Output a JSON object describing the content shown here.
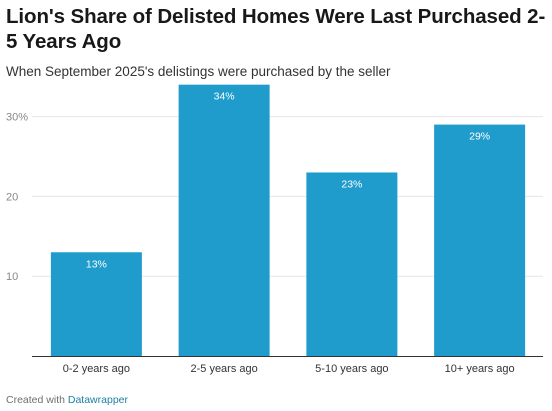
{
  "chart_data": {
    "type": "bar",
    "title": "Lion's Share of Delisted Homes Were Last Purchased 2-5 Years Ago",
    "subtitle": "When September 2025's delistings were purchased by the seller",
    "categories": [
      "0-2 years ago",
      "2-5 years ago",
      "5-10 years ago",
      "10+ years ago"
    ],
    "values": [
      13,
      34,
      23,
      29
    ],
    "value_labels": [
      "13%",
      "34%",
      "23%",
      "29%"
    ],
    "ylim": [
      0,
      30
    ],
    "yticks": [
      10,
      20,
      30
    ],
    "ytick_labels": [
      "10",
      "20",
      "30%"
    ],
    "xlabel": "",
    "ylabel": "",
    "grid": true,
    "bar_color": "#1f9ccc"
  },
  "footer": {
    "prefix": "Created with",
    "brand": "Datawrapper"
  },
  "colors": {
    "bar": "#1f9ccc",
    "grid": "#e6e6e6",
    "axis": "#333333",
    "tick_label": "#888888",
    "brand": "#1d81a2"
  }
}
